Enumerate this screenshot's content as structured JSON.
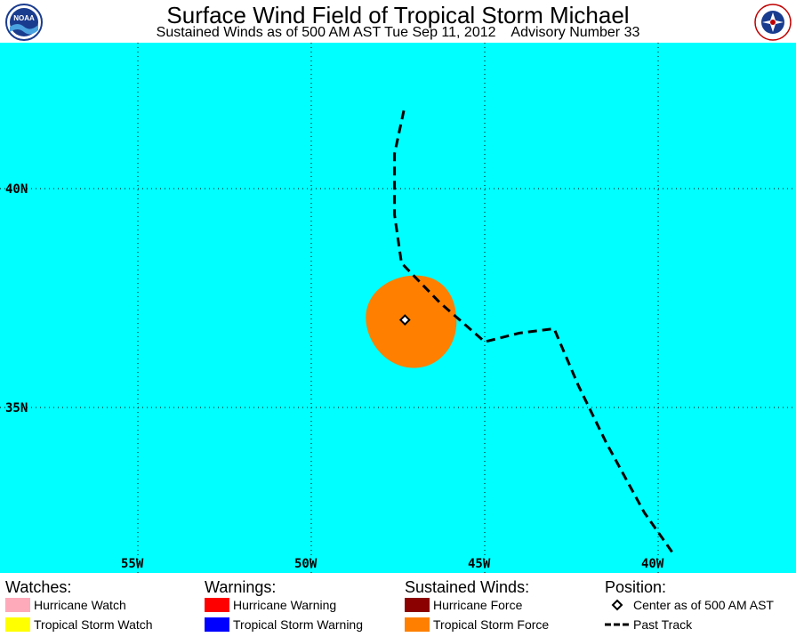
{
  "header": {
    "title": "Surface Wind Field of Tropical Storm Michael",
    "subtitle": "Sustained Winds as of 500 AM AST Tue Sep 11, 2012    Advisory Number 33",
    "logo_left_text": "NOAA",
    "logo_right_text": "NATIONAL WEATHER SERVICE"
  },
  "map": {
    "background_color": "#00ffff",
    "grid_style": "dotted",
    "lon_labels": [
      "55W",
      "50W",
      "45W",
      "40W"
    ],
    "lat_labels": [
      "40N",
      "35N"
    ],
    "storm_center": {
      "lon": -47.3,
      "lat": 37.0
    },
    "tropical_storm_force_color": "#ff8000",
    "past_track": [
      {
        "lon": -39.6,
        "lat": 31.7
      },
      {
        "lon": -40.4,
        "lat": 32.6
      },
      {
        "lon": -41.5,
        "lat": 34.2
      },
      {
        "lon": -42.3,
        "lat": 35.5
      },
      {
        "lon": -43.0,
        "lat": 36.8
      },
      {
        "lon": -44.0,
        "lat": 36.7
      },
      {
        "lon": -45.0,
        "lat": 36.5
      },
      {
        "lon": -46.3,
        "lat": 37.4
      },
      {
        "lon": -47.4,
        "lat": 38.3
      },
      {
        "lon": -47.6,
        "lat": 39.4
      },
      {
        "lon": -47.6,
        "lat": 40.8
      },
      {
        "lon": -47.3,
        "lat": 41.9
      }
    ]
  },
  "legend": {
    "watches": {
      "heading": "Watches:",
      "items": [
        {
          "label": "Hurricane Watch",
          "color": "#ffaabb"
        },
        {
          "label": "Tropical Storm Watch",
          "color": "#ffff00"
        }
      ]
    },
    "warnings": {
      "heading": "Warnings:",
      "items": [
        {
          "label": "Hurricane Warning",
          "color": "#ff0000"
        },
        {
          "label": "Tropical Storm Warning",
          "color": "#0000ff"
        }
      ]
    },
    "winds": {
      "heading": "Sustained Winds:",
      "items": [
        {
          "label": "Hurricane Force",
          "color": "#8b0000"
        },
        {
          "label": "Tropical Storm Force",
          "color": "#ff8000"
        }
      ]
    },
    "position": {
      "heading": "Position:",
      "center_label": "Center as of 500 AM AST",
      "track_label": "Past Track"
    }
  }
}
